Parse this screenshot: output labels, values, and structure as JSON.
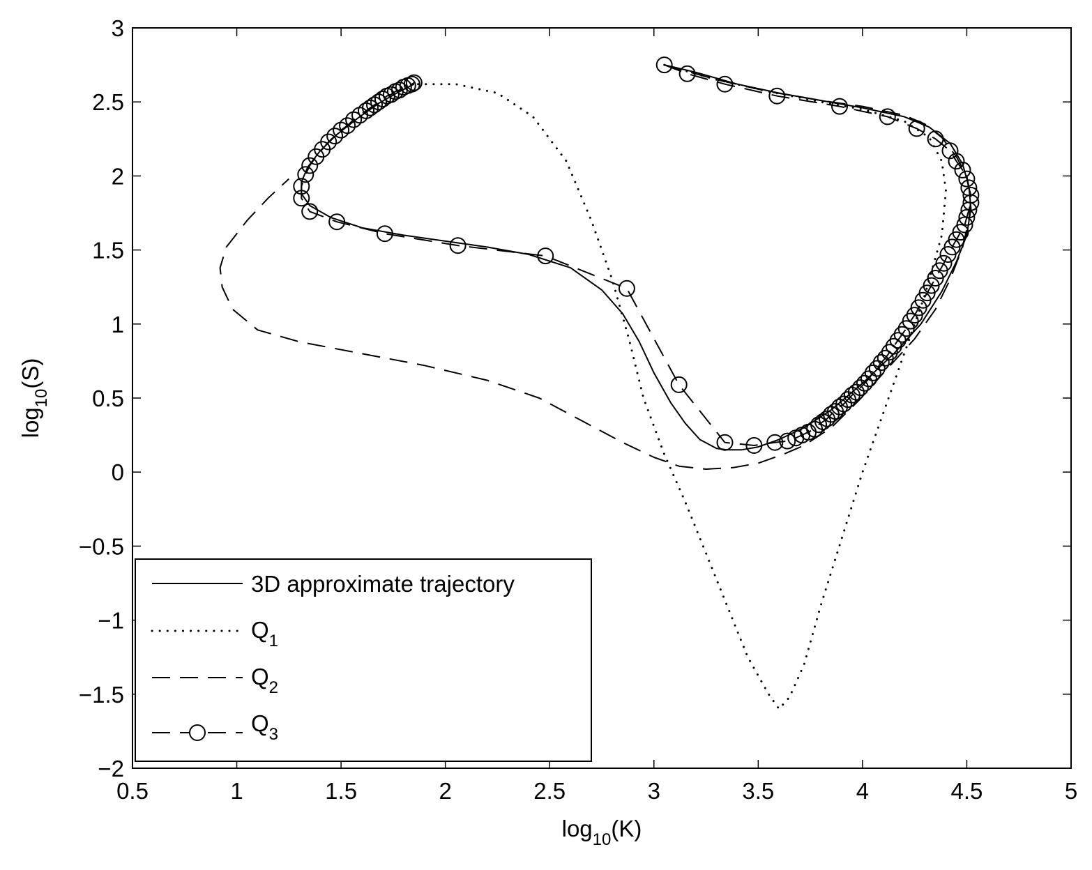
{
  "chart_data": {
    "type": "line",
    "xlabel": {
      "base": "log",
      "sub": "10",
      "rest": "(K)"
    },
    "ylabel": {
      "base": "log",
      "sub": "10",
      "rest": "(S)"
    },
    "xlim": [
      0.5,
      5
    ],
    "ylim": [
      -2,
      3
    ],
    "xticks": [
      0.5,
      1,
      1.5,
      2,
      2.5,
      3,
      3.5,
      4,
      4.5,
      5
    ],
    "xtick_labels": [
      "0.5",
      "1",
      "1.5",
      "2",
      "2.5",
      "3",
      "3.5",
      "4",
      "4.5",
      "5"
    ],
    "yticks": [
      -2,
      -1.5,
      -1,
      -0.5,
      0,
      0.5,
      1,
      1.5,
      2,
      2.5,
      3
    ],
    "ytick_labels": [
      "−2",
      "−1.5",
      "−1",
      "−0.5",
      "0",
      "0.5",
      "1",
      "1.5",
      "2",
      "2.5",
      "3"
    ],
    "grid": false,
    "legend_position": "bottom-left",
    "series": [
      {
        "name": "3D approximate trajectory",
        "label_main": "3D approximate trajectory",
        "label_sub": "",
        "style": "solid",
        "marker": "none",
        "x": [
          3.05,
          3.2,
          3.4,
          3.6,
          3.8,
          4.0,
          4.2,
          4.32,
          4.42,
          4.48,
          4.51,
          4.52,
          4.5,
          4.45,
          4.38,
          4.28,
          4.15,
          4.0,
          3.85,
          3.72,
          3.6,
          3.5,
          3.42,
          3.35,
          3.3,
          3.22,
          3.15,
          3.08,
          3.0,
          2.93,
          2.85,
          2.75,
          2.6,
          2.4,
          2.2,
          2.0,
          1.8,
          1.6,
          1.45,
          1.35,
          1.31,
          1.31,
          1.34,
          1.4,
          1.48,
          1.58,
          1.68,
          1.78,
          1.85
        ],
        "y": [
          2.75,
          2.7,
          2.62,
          2.56,
          2.51,
          2.46,
          2.4,
          2.33,
          2.22,
          2.08,
          1.93,
          1.78,
          1.6,
          1.42,
          1.22,
          1.0,
          0.8,
          0.6,
          0.42,
          0.3,
          0.22,
          0.17,
          0.15,
          0.15,
          0.16,
          0.22,
          0.33,
          0.47,
          0.67,
          0.88,
          1.07,
          1.23,
          1.38,
          1.47,
          1.52,
          1.56,
          1.6,
          1.65,
          1.72,
          1.8,
          1.88,
          1.96,
          2.06,
          2.17,
          2.28,
          2.39,
          2.49,
          2.57,
          2.62
        ]
      },
      {
        "name": "Q1",
        "label_main": "Q",
        "label_sub": "1",
        "style": "dotted",
        "marker": "none",
        "x": [
          3.05,
          3.3,
          3.55,
          3.8,
          4.0,
          4.2,
          4.32,
          4.38,
          4.4,
          4.38,
          4.3,
          4.2,
          4.1,
          4.0,
          3.9,
          3.8,
          3.72,
          3.65,
          3.6,
          3.55,
          3.45,
          3.35,
          3.25,
          3.15,
          3.05,
          2.95,
          2.88,
          2.8,
          2.7,
          2.58,
          2.42,
          2.25,
          2.05,
          1.85
        ],
        "y": [
          2.75,
          2.65,
          2.57,
          2.5,
          2.45,
          2.37,
          2.26,
          2.1,
          1.9,
          1.6,
          1.2,
          0.8,
          0.4,
          0.0,
          -0.45,
          -0.9,
          -1.3,
          -1.52,
          -1.6,
          -1.5,
          -1.25,
          -0.9,
          -0.55,
          -0.2,
          0.12,
          0.5,
          0.9,
          1.3,
          1.7,
          2.1,
          2.4,
          2.56,
          2.62,
          2.62
        ]
      },
      {
        "name": "Q2",
        "label_main": "Q",
        "label_sub": "2",
        "style": "dashed",
        "marker": "none",
        "x": [
          3.05,
          3.3,
          3.55,
          3.8,
          4.0,
          4.2,
          4.3,
          4.38,
          4.45,
          4.5,
          4.52,
          4.51,
          4.48,
          4.42,
          4.35,
          4.25,
          4.12,
          3.98,
          3.85,
          3.72,
          3.62,
          3.5,
          3.38,
          3.25,
          3.12,
          3.0,
          2.85,
          2.65,
          2.45,
          2.2,
          1.9,
          1.6,
          1.3,
          1.1,
          0.98,
          0.93,
          0.92,
          0.95,
          1.05,
          1.15,
          1.25
        ],
        "y": [
          2.75,
          2.65,
          2.57,
          2.51,
          2.47,
          2.41,
          2.35,
          2.26,
          2.13,
          2.0,
          1.85,
          1.7,
          1.52,
          1.3,
          1.1,
          0.9,
          0.7,
          0.48,
          0.3,
          0.18,
          0.12,
          0.06,
          0.03,
          0.02,
          0.04,
          0.1,
          0.2,
          0.35,
          0.5,
          0.62,
          0.72,
          0.8,
          0.88,
          0.96,
          1.1,
          1.25,
          1.38,
          1.52,
          1.7,
          1.85,
          1.98
        ]
      },
      {
        "name": "Q3",
        "label_main": "Q",
        "label_sub": "3",
        "style": "dashed",
        "marker": "circle",
        "x": [
          3.05,
          3.16,
          3.34,
          3.59,
          3.89,
          4.12,
          4.26,
          4.35,
          4.42,
          4.45,
          4.48,
          4.5,
          4.51,
          4.52,
          4.52,
          4.51,
          4.5,
          4.49,
          4.47,
          4.45,
          4.43,
          4.41,
          4.39,
          4.37,
          4.35,
          4.33,
          4.31,
          4.29,
          4.27,
          4.25,
          4.23,
          4.21,
          4.19,
          4.17,
          4.15,
          4.13,
          4.11,
          4.09,
          4.07,
          4.05,
          4.03,
          4.01,
          3.99,
          3.97,
          3.95,
          3.93,
          3.91,
          3.89,
          3.87,
          3.85,
          3.83,
          3.81,
          3.79,
          3.77,
          3.74,
          3.71,
          3.68,
          3.64,
          3.58,
          3.48,
          3.34,
          3.12,
          2.87,
          2.48,
          2.06,
          1.71,
          1.48,
          1.35,
          1.31,
          1.31,
          1.33,
          1.35,
          1.38,
          1.41,
          1.44,
          1.47,
          1.5,
          1.53,
          1.56,
          1.59,
          1.62,
          1.64,
          1.66,
          1.68,
          1.7,
          1.72,
          1.74,
          1.76,
          1.78,
          1.8,
          1.82,
          1.84,
          1.85
        ],
        "y": [
          2.75,
          2.69,
          2.62,
          2.54,
          2.47,
          2.4,
          2.32,
          2.25,
          2.17,
          2.1,
          2.04,
          1.98,
          1.92,
          1.87,
          1.82,
          1.77,
          1.72,
          1.67,
          1.62,
          1.57,
          1.52,
          1.47,
          1.41,
          1.36,
          1.31,
          1.26,
          1.21,
          1.16,
          1.11,
          1.06,
          1.02,
          0.97,
          0.93,
          0.89,
          0.85,
          0.81,
          0.77,
          0.74,
          0.7,
          0.67,
          0.63,
          0.6,
          0.57,
          0.54,
          0.52,
          0.49,
          0.46,
          0.44,
          0.41,
          0.39,
          0.36,
          0.34,
          0.32,
          0.29,
          0.27,
          0.25,
          0.23,
          0.21,
          0.2,
          0.18,
          0.2,
          0.59,
          1.24,
          1.46,
          1.53,
          1.61,
          1.69,
          1.76,
          1.85,
          1.93,
          2.01,
          2.07,
          2.13,
          2.18,
          2.23,
          2.27,
          2.31,
          2.34,
          2.38,
          2.41,
          2.44,
          2.46,
          2.48,
          2.5,
          2.52,
          2.54,
          2.55,
          2.57,
          2.58,
          2.6,
          2.61,
          2.62,
          2.63
        ]
      }
    ]
  }
}
